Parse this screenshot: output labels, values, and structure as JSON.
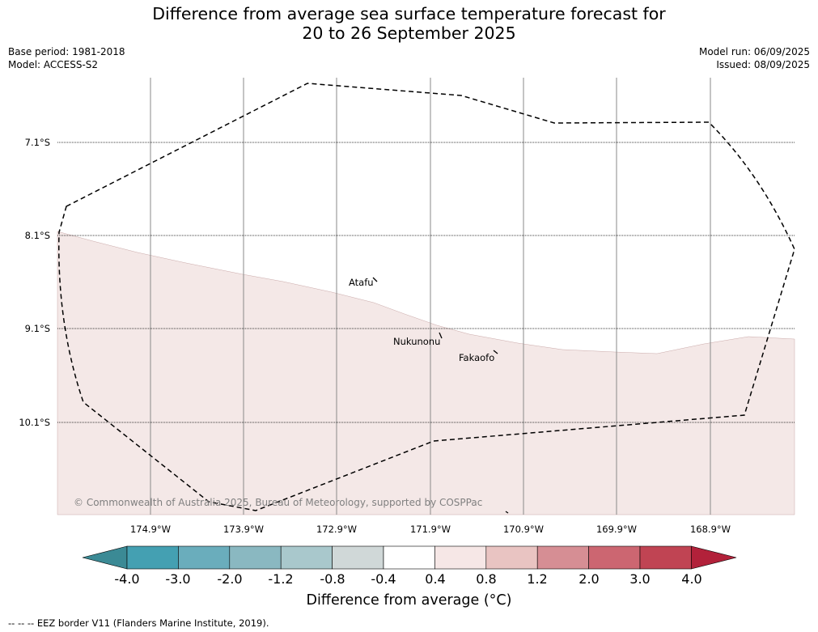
{
  "title_line1": "Difference from average sea surface temperature forecast for",
  "title_line2": "20 to 26 September 2025",
  "base_period": "Base period: 1981-2018",
  "model": "Model: ACCESS-S2",
  "model_run": "Model run: 06/09/2025",
  "issued": "Issued: 08/09/2025",
  "latitudes": [
    "7.1°S",
    "8.1°S",
    "9.1°S",
    "10.1°S"
  ],
  "longitudes": [
    "174.9°W",
    "173.9°W",
    "172.9°W",
    "171.9°W",
    "170.9°W",
    "169.9°W",
    "168.9°W"
  ],
  "places": [
    "Atafu",
    "Nukunonu",
    "Fakaofo"
  ],
  "copyright": "© Commonwealth of Australia 2025, Bureau of Meteorology, supported by COSPPac",
  "colorbar": {
    "ticks": [
      "-4.0",
      "-3.0",
      "-2.0",
      "-1.2",
      "-0.8",
      "-0.4",
      "0.4",
      "0.8",
      "1.2",
      "2.0",
      "3.0",
      "4.0"
    ],
    "colors": [
      "#3b8a95",
      "#44a0b2",
      "#6aadbc",
      "#8ab8c1",
      "#a9c8cc",
      "#d0d8d8",
      "#ffffff",
      "#f6e7e6",
      "#e9c4c2",
      "#d68e94",
      "#cc6671",
      "#c04453",
      "#b2213a"
    ],
    "label": "Difference from average (°C)"
  },
  "map_fill_color": "#f4e8e7",
  "footer": "-- -- -- EEZ border V11 (Flanders Marine Institute, 2019)."
}
